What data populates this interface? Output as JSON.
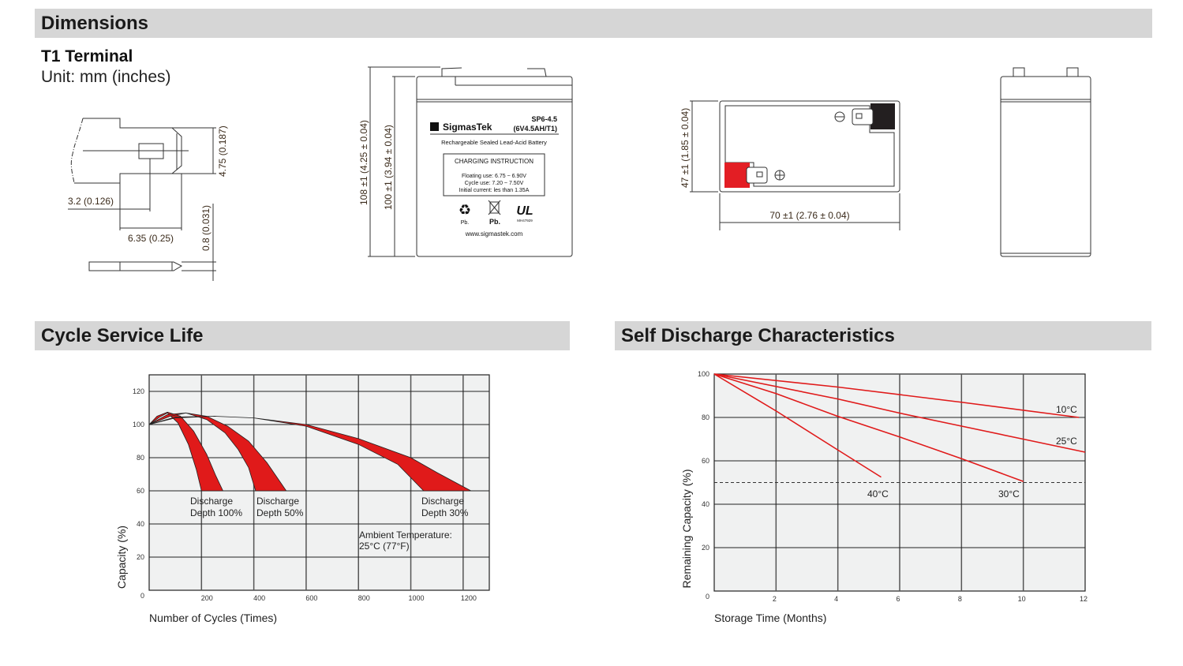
{
  "sections": {
    "dimensions": "Dimensions",
    "cycle": "Cycle Service Life",
    "self_discharge": "Self Discharge Characteristics"
  },
  "terminal": {
    "title": "T1 Terminal",
    "unit": "Unit: mm (inches)",
    "dim_height": "4.75 (0.187)",
    "dim_hole": "3.2 (0.126)",
    "dim_width": "6.35 (0.25)",
    "dim_thickness": "0.8 (0.031)"
  },
  "battery": {
    "total_height": "108 ±1 (4.25 ± 0.04)",
    "case_height": "100 ±1 (3.94 ± 0.04)",
    "width": "47 ±1 (1.85 ± 0.04)",
    "length": "70 ±1 (2.76 ± 0.04)",
    "label": {
      "brand": "SigmasTek",
      "model": "SP6-4.5",
      "spec": "(6V4.5AH/T1)",
      "type": "Rechargeable Sealed Lead-Acid Battery",
      "charging_title": "CHARGING INSTRUCTION",
      "floating": "Floating use: 6.75 ~ 6.90V",
      "cycle": "Cycle use: 7.20 ~ 7.50V",
      "initial": "Initial current: les than 1.35A",
      "pb1": "Pb.",
      "pb2": "Pb.",
      "ul_logo": "UL",
      "ul_code": "MH47929",
      "website": "www.sigmastek.com"
    },
    "colors": {
      "positive": "#e31e24",
      "negative": "#231f20"
    }
  },
  "chart_data": [
    {
      "type": "area",
      "xlabel": "Number of Cycles (Times)",
      "ylabel": "Capacity (%)",
      "xlim": [
        0,
        1300
      ],
      "ylim": [
        0,
        130
      ],
      "x_ticks": [
        "200",
        "400",
        "600",
        "800",
        "1000",
        "1200"
      ],
      "y_ticks": [
        "0",
        "20",
        "40",
        "60",
        "80",
        "100",
        "120"
      ],
      "grid": true,
      "fill_color": "#e01a1a",
      "series": [
        {
          "name": "Discharge Depth 100%",
          "upper": [
            [
              0,
              100
            ],
            [
              30,
              105
            ],
            [
              70,
              107.5
            ],
            [
              120,
              105
            ],
            [
              170,
              96
            ],
            [
              220,
              82
            ],
            [
              255,
              69
            ],
            [
              282,
              60
            ]
          ],
          "lower": [
            [
              0,
              100
            ],
            [
              40,
              104.5
            ],
            [
              70,
              107
            ],
            [
              110,
              101
            ],
            [
              150,
              88
            ],
            [
              180,
              73
            ],
            [
              200,
              60
            ]
          ]
        },
        {
          "name": "Discharge Depth 50%",
          "upper": [
            [
              0,
              100
            ],
            [
              70,
              106
            ],
            [
              140,
              107
            ],
            [
              220,
              105
            ],
            [
              300,
              99
            ],
            [
              380,
              90
            ],
            [
              450,
              77
            ],
            [
              524,
              60
            ]
          ],
          "lower": [
            [
              0,
              100
            ],
            [
              80,
              105
            ],
            [
              140,
              107
            ],
            [
              220,
              103
            ],
            [
              290,
              95
            ],
            [
              340,
              85
            ],
            [
              380,
              74
            ],
            [
              407,
              60
            ]
          ]
        },
        {
          "name": "Discharge Depth 30%",
          "upper": [
            [
              0,
              100
            ],
            [
              100,
              104.5
            ],
            [
              250,
              105
            ],
            [
              400,
              104
            ],
            [
              600,
              100
            ],
            [
              800,
              91.5
            ],
            [
              1000,
              80
            ],
            [
              1100,
              71
            ],
            [
              1230,
              60
            ]
          ],
          "lower": [
            [
              0,
              100
            ],
            [
              100,
              104
            ],
            [
              250,
              105
            ],
            [
              400,
              104
            ],
            [
              600,
              99
            ],
            [
              800,
              88
            ],
            [
              950,
              76
            ],
            [
              1049,
              60
            ]
          ]
        }
      ],
      "annotations": {
        "d100_line1": "Discharge",
        "d100_line2": "Depth 100%",
        "d50_line1": "Discharge",
        "d50_line2": "Depth 50%",
        "d30_line1": "Discharge",
        "d30_line2": "Depth 30%",
        "ambient_line1": "Ambient Temperature:",
        "ambient_line2": "25°C (77°F)"
      }
    },
    {
      "type": "line",
      "xlabel": "Storage Time (Months)",
      "ylabel": "Remaining Capacity (%)",
      "xlim": [
        0,
        12
      ],
      "ylim": [
        0,
        100
      ],
      "x_ticks": [
        "2",
        "4",
        "6",
        "8",
        "10",
        "12"
      ],
      "y_ticks": [
        "0",
        "20",
        "40",
        "60",
        "80",
        "100"
      ],
      "grid": true,
      "reference_line": 50,
      "line_color": "#e01a1a",
      "series": [
        {
          "name": "10°C",
          "points": [
            [
              0,
              100
            ],
            [
              4,
              94
            ],
            [
              8,
              87
            ],
            [
              11.8,
              80
            ]
          ]
        },
        {
          "name": "25°C",
          "points": [
            [
              0,
              100
            ],
            [
              4,
              88.5
            ],
            [
              6,
              82
            ],
            [
              8,
              76
            ],
            [
              10,
              70
            ],
            [
              12,
              64
            ]
          ]
        },
        {
          "name": "30°C",
          "points": [
            [
              0,
              100
            ],
            [
              2,
              91
            ],
            [
              4,
              80.5
            ],
            [
              6,
              71
            ],
            [
              8,
              61
            ],
            [
              10,
              50.5
            ]
          ]
        },
        {
          "name": "40°C",
          "points": [
            [
              0,
              100
            ],
            [
              2,
              83
            ],
            [
              4,
              65
            ],
            [
              5.4,
              52.5
            ]
          ]
        }
      ]
    }
  ]
}
